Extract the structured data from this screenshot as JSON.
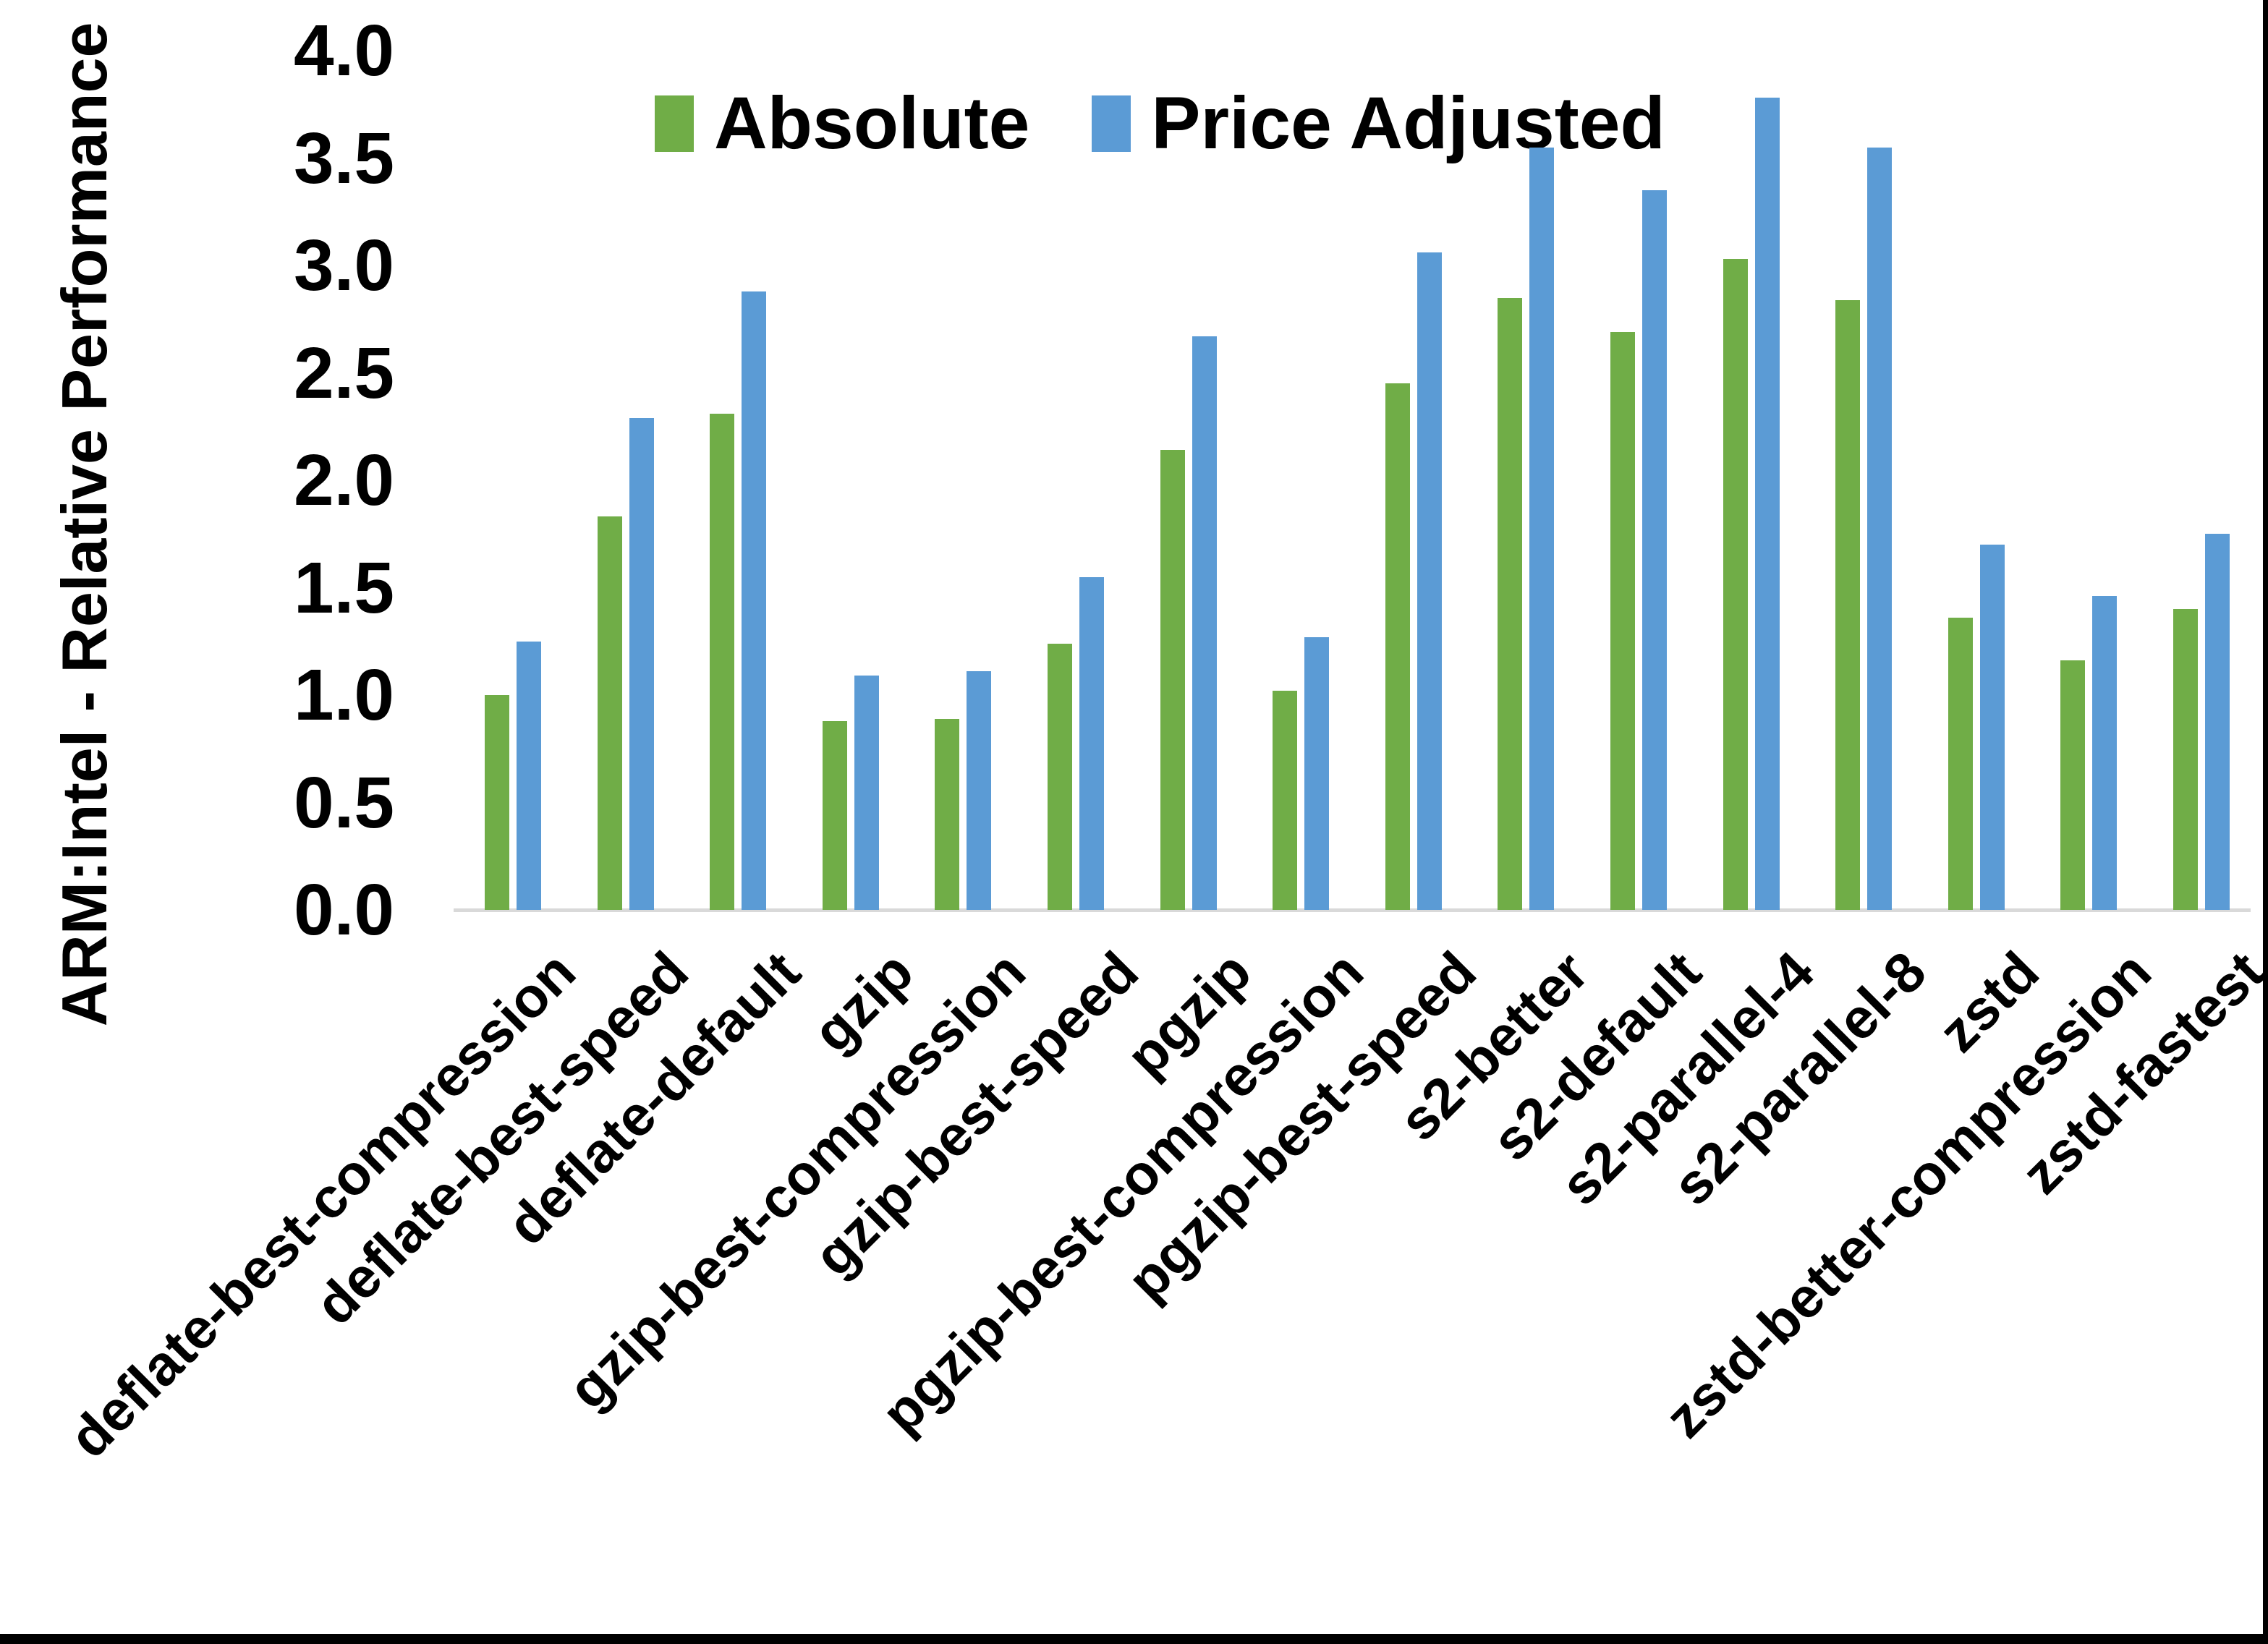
{
  "frame": {
    "background": "#FFFFFF",
    "border_color": "#000000"
  },
  "chart_data": {
    "type": "bar",
    "title": "",
    "ylabel": "ARM:Intel - Relative Performance",
    "xlabel": "",
    "ylim": [
      0.0,
      4.0
    ],
    "ytick_step": 0.5,
    "ytick_labels": [
      "0.0",
      "0.5",
      "1.0",
      "1.5",
      "2.0",
      "2.5",
      "3.0",
      "3.5",
      "4.0"
    ],
    "grid": false,
    "legend_position": "top",
    "axis_color": "#D9D9D9",
    "text_color": "#000000",
    "categories": [
      "deflate-best-compression",
      "deflate-best-speed",
      "deflate-default",
      "gzip",
      "gzip-best-compression",
      "gzip-best-speed",
      "pgzip",
      "pgzip-best-compression",
      "pgzip-best-speed",
      "s2-better",
      "s2-default",
      "s2-parallel-4",
      "s2-parallel-8",
      "zstd",
      "zstd-better-compression",
      "zstd-fastest"
    ],
    "series": [
      {
        "name": "Absolute",
        "color": "#70AD47",
        "values": [
          1.0,
          1.83,
          2.31,
          0.88,
          0.89,
          1.24,
          2.14,
          1.02,
          2.45,
          2.85,
          2.69,
          3.03,
          2.84,
          1.36,
          1.16,
          1.4
        ]
      },
      {
        "name": "Price Adjusted",
        "color": "#5B9BD5",
        "values": [
          1.25,
          2.29,
          2.88,
          1.09,
          1.11,
          1.55,
          2.67,
          1.27,
          3.06,
          3.55,
          3.35,
          3.78,
          3.55,
          1.7,
          1.46,
          1.75
        ]
      }
    ]
  }
}
